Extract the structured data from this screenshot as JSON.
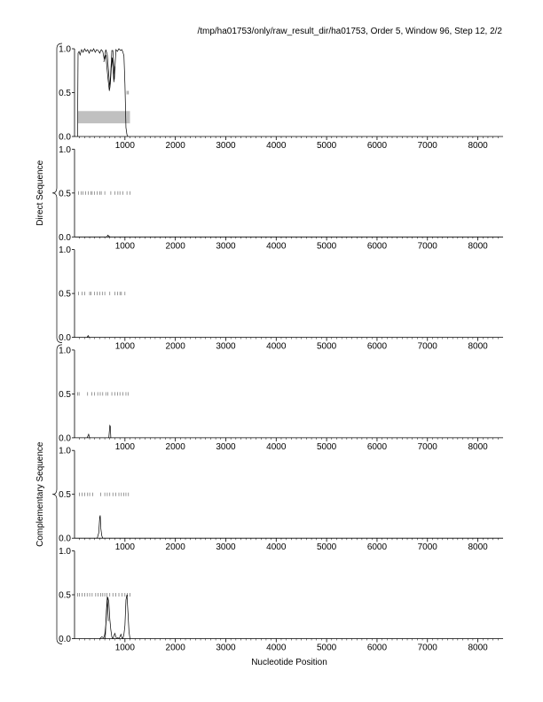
{
  "header": {
    "title": "/tmp/ha01753/only/raw_result_dir/ha01753, Order 5, Window 96, Step 12, 2/2"
  },
  "chart_data": {
    "type": "line",
    "title": "/tmp/ha01753/only/raw_result_dir/ha01753, Order 5, Window 96, Step 12, 2/2",
    "xlabel": "Nucleotide Position",
    "xlim": [
      0,
      8500
    ],
    "ylim": [
      0,
      1
    ],
    "xticks": [
      1000,
      2000,
      3000,
      4000,
      5000,
      6000,
      7000,
      8000
    ],
    "xtick_labels": [
      "1000",
      "2000",
      "3000",
      "4000",
      "5000",
      "6000",
      "7000",
      "8000"
    ],
    "yticks": [
      0,
      0.5,
      1
    ],
    "ytick_labels": [
      "0.0",
      "0.5",
      "1.0"
    ],
    "grid": false,
    "groups": [
      {
        "label": "Direct Sequence",
        "panels": [
          0,
          1,
          2
        ]
      },
      {
        "label": "Complementary Sequence",
        "panels": [
          3,
          4,
          5
        ]
      }
    ],
    "panels": [
      {
        "frame": 1,
        "region": {
          "x": [
            70,
            1100
          ],
          "y": [
            0.15,
            0.29
          ],
          "color": "#c0c0c0"
        },
        "series": [
          {
            "x": [
              60,
              70,
              90,
              110,
              140,
              170,
              200,
              230,
              260,
              290,
              320,
              350,
              380,
              410,
              440,
              470,
              500,
              530,
              560,
              590,
              620,
              650,
              680,
              700,
              720,
              740,
              760,
              790,
              820,
              850,
              880,
              910,
              940,
              960,
              980,
              1000,
              1020,
              1040,
              1060
            ],
            "y": [
              0.0,
              0.95,
              0.97,
              0.93,
              0.99,
              0.96,
              1.0,
              0.97,
              0.99,
              0.95,
              0.99,
              0.97,
              1.0,
              0.96,
              0.99,
              0.98,
              0.95,
              0.99,
              0.97,
              0.88,
              0.99,
              0.93,
              0.7,
              0.55,
              0.75,
              0.98,
              0.98,
              0.65,
              0.99,
              0.97,
              1.0,
              0.98,
              0.99,
              0.96,
              0.92,
              0.6,
              0.1,
              0.02,
              0.0
            ]
          },
          {
            "x": [
              580,
              620,
              660,
              690,
              710,
              730,
              750,
              780,
              800
            ],
            "y": [
              0.85,
              0.93,
              0.68,
              0.52,
              0.6,
              0.78,
              0.9,
              0.62,
              0.8
            ]
          }
        ],
        "marks": [
          1040,
          1070
        ]
      },
      {
        "frame": 2,
        "series": [
          {
            "x": [
              640,
              660,
              680,
              700
            ],
            "y": [
              0.0,
              0.02,
              0.01,
              0.0
            ]
          }
        ],
        "marks": [
          80,
          130,
          170,
          220,
          270,
          320,
          350,
          400,
          450,
          500,
          530,
          600,
          720,
          800,
          860,
          900,
          960,
          1040,
          1100
        ]
      },
      {
        "frame": 3,
        "series": [
          {
            "x": [
              250,
              270,
              290
            ],
            "y": [
              0.0,
              0.02,
              0.0
            ]
          }
        ],
        "marks": [
          80,
          150,
          200,
          300,
          330,
          400,
          450,
          500,
          550,
          600,
          700,
          800,
          850,
          900,
          930,
          1000
        ]
      },
      {
        "frame": 4,
        "series": [
          {
            "x": [
              250,
              280,
              300
            ],
            "y": [
              0.0,
              0.04,
              0.0
            ]
          },
          {
            "x": [
              680,
              700,
              710,
              720
            ],
            "y": [
              0.0,
              0.14,
              0.13,
              0.0
            ]
          }
        ],
        "marks": [
          60,
          90,
          260,
          340,
          400,
          460,
          510,
          560,
          620,
          660,
          740,
          800,
          850,
          900,
          960,
          1020,
          1060
        ]
      },
      {
        "frame": 5,
        "series": [
          {
            "x": [
              450,
              480,
              500,
              510,
              520,
              540,
              560
            ],
            "y": [
              0.0,
              0.06,
              0.24,
              0.26,
              0.12,
              0.03,
              0.0
            ]
          }
        ],
        "marks": [
          100,
          150,
          200,
          260,
          300,
          360,
          520,
          600,
          650,
          700,
          760,
          820,
          880,
          930,
          980,
          1020,
          1070
        ]
      },
      {
        "frame": 6,
        "series": [
          {
            "x": [
              500,
              540,
              580,
              600,
              620,
              640,
              660,
              680,
              700,
              720,
              740,
              760,
              780,
              800,
              820,
              840,
              860,
              880,
              900,
              920,
              940,
              960,
              980,
              1000,
              1020,
              1040,
              1060,
              1080,
              1100
            ],
            "y": [
              0.0,
              0.02,
              0.01,
              0.05,
              0.15,
              0.35,
              0.47,
              0.42,
              0.22,
              0.1,
              0.02,
              0.0,
              0.03,
              0.06,
              0.02,
              0.0,
              0.01,
              0.0,
              0.02,
              0.05,
              0.01,
              0.0,
              0.05,
              0.15,
              0.44,
              0.5,
              0.3,
              0.08,
              0.0
            ]
          },
          {
            "x": [
              610,
              630,
              650,
              670
            ],
            "y": [
              0.0,
              0.3,
              0.48,
              0.2
            ]
          }
        ],
        "marks": [
          60,
          100,
          150,
          200,
          250,
          300,
          350,
          420,
          470,
          520,
          560,
          600,
          640,
          700,
          760,
          820,
          880,
          940,
          1000,
          1050,
          1100
        ]
      }
    ]
  }
}
